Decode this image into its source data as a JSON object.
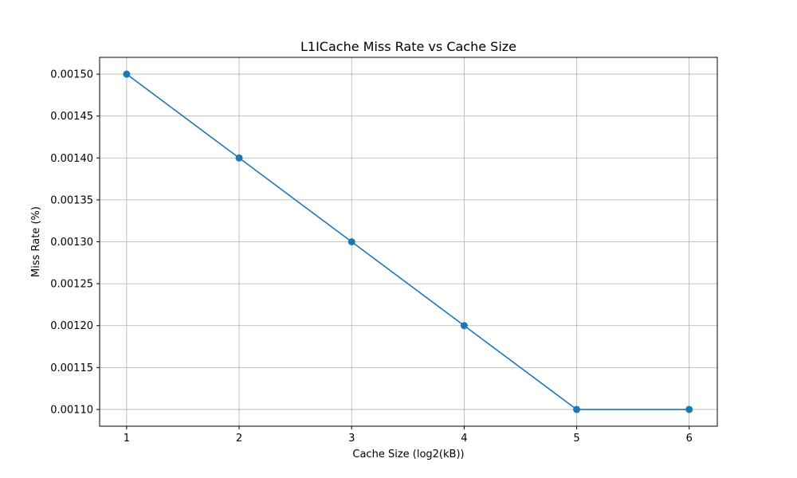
{
  "chart_data": {
    "type": "line",
    "title": "L1ICache Miss Rate vs Cache Size",
    "xlabel": "Cache Size (log2(kB))",
    "ylabel": "Miss Rate (%)",
    "x": [
      1,
      2,
      3,
      4,
      5,
      6
    ],
    "x_ticks": [
      "1",
      "2",
      "3",
      "4",
      "5",
      "6"
    ],
    "y_ticks": [
      "0.00110",
      "0.00115",
      "0.00120",
      "0.00125",
      "0.00130",
      "0.00135",
      "0.00140",
      "0.00145",
      "0.00150"
    ],
    "xlim": [
      0.76,
      6.25
    ],
    "ylim": [
      0.00108,
      0.00152
    ],
    "grid": true,
    "series": [
      {
        "values": [
          0.0015,
          0.0014,
          0.0013,
          0.0012,
          0.0011,
          0.0011
        ],
        "color": "#1f77b4",
        "marker": "circle"
      }
    ]
  }
}
